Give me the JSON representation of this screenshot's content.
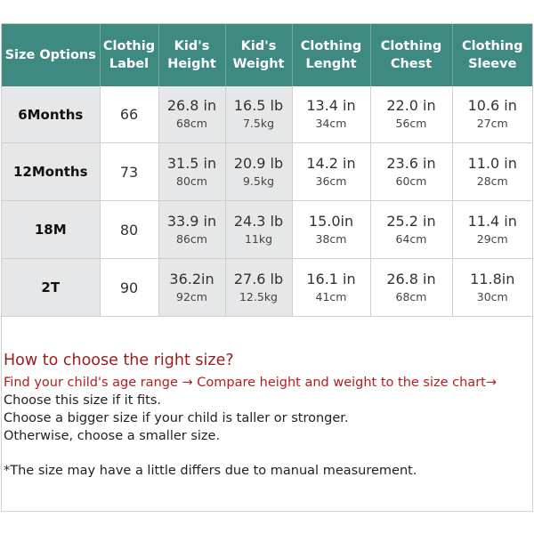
{
  "header": [
    "Size Options",
    "Clothig Label",
    "Kid's Height",
    "Kid's Weight",
    "Clothing Lenght",
    "Clothing Chest",
    "Clothing Sleeve"
  ],
  "rows": [
    {
      "size": "6Months",
      "label": "66",
      "height": {
        "main": "26.8 in",
        "sub": "68cm"
      },
      "weight": {
        "main": "16.5 lb",
        "sub": "7.5kg"
      },
      "length": {
        "main": "13.4 in",
        "sub": "34cm"
      },
      "chest": {
        "main": "22.0 in",
        "sub": "56cm"
      },
      "sleeve": {
        "main": "10.6 in",
        "sub": "27cm"
      }
    },
    {
      "size": "12Months",
      "label": "73",
      "height": {
        "main": "31.5 in",
        "sub": "80cm"
      },
      "weight": {
        "main": "20.9 lb",
        "sub": "9.5kg"
      },
      "length": {
        "main": "14.2 in",
        "sub": "36cm"
      },
      "chest": {
        "main": "23.6 in",
        "sub": "60cm"
      },
      "sleeve": {
        "main": "11.0 in",
        "sub": "28cm"
      }
    },
    {
      "size": "18M",
      "label": "80",
      "height": {
        "main": "33.9 in",
        "sub": "86cm"
      },
      "weight": {
        "main": "24.3 lb",
        "sub": "11kg"
      },
      "length": {
        "main": "15.0in",
        "sub": "38cm"
      },
      "chest": {
        "main": "25.2 in",
        "sub": "64cm"
      },
      "sleeve": {
        "main": "11.4 in",
        "sub": "29cm"
      }
    },
    {
      "size": "2T",
      "label": "90",
      "height": {
        "main": "36.2in",
        "sub": "92cm"
      },
      "weight": {
        "main": "27.6 lb",
        "sub": "12.5kg"
      },
      "length": {
        "main": "16.1 in",
        "sub": "41cm"
      },
      "chest": {
        "main": "26.8 in",
        "sub": "68cm"
      },
      "sleeve": {
        "main": "11.8in",
        "sub": "30cm"
      }
    }
  ],
  "guide": {
    "title": "How to choose the right size?",
    "steps": "Find your child's age range → Compare height and weight to the size chart→",
    "lines": [
      "Choose this size if it fits.",
      "Choose a bigger size if your child is taller or stronger.",
      "Otherwise, choose a smaller size."
    ],
    "note": "*The size  may have a little differs due to manual measurement."
  },
  "colors": {
    "header_bg": "#3f8a80",
    "shade": "#e6e7e9",
    "guide_title": "#9b1c1c",
    "guide_steps": "#b41e1e"
  }
}
